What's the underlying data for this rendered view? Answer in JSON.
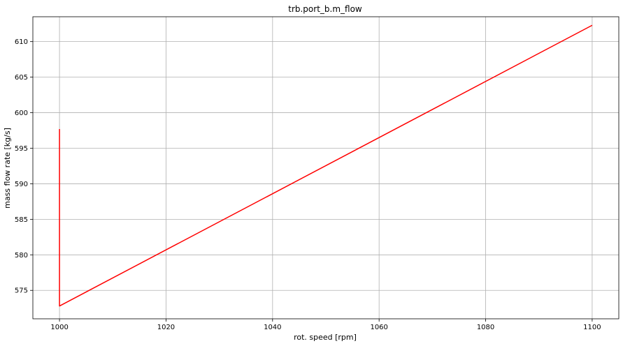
{
  "chart_data": {
    "type": "line",
    "title": "trb.port_b.m_flow",
    "xlabel": "rot. speed [rpm]",
    "ylabel": "mass flow rate [kg/s]",
    "xlim": [
      995,
      1105
    ],
    "ylim": [
      571,
      613.5
    ],
    "xticks": [
      1000,
      1020,
      1040,
      1060,
      1080,
      1100
    ],
    "yticks": [
      575,
      580,
      585,
      590,
      595,
      600,
      605,
      610
    ],
    "grid": true,
    "series": [
      {
        "color": "#ff0000",
        "x": [
          1000,
          1000,
          1100
        ],
        "y": [
          597.7,
          572.8,
          612.3
        ]
      }
    ]
  }
}
